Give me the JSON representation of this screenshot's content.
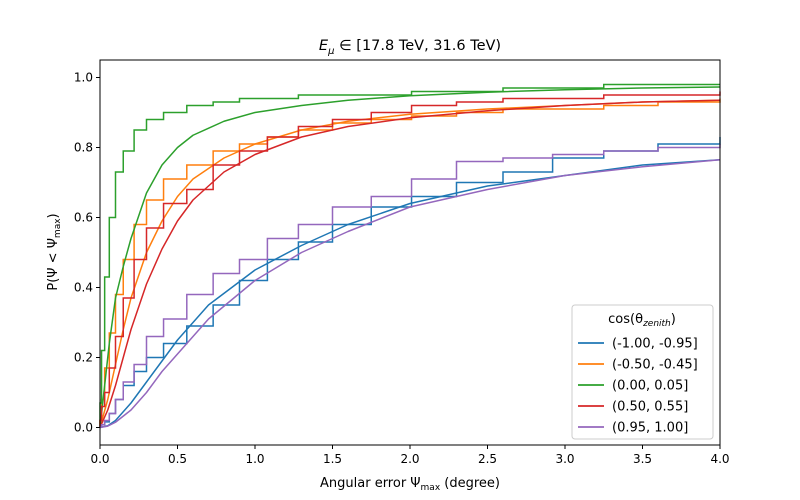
{
  "chart_data": {
    "type": "line",
    "title_prefix": "E",
    "title_sub": "μ",
    "title_suffix": " ∈ [17.8 TeV, 31.6 TeV)",
    "xlabel_prefix": "Angular error Ψ",
    "xlabel_sub": "max",
    "xlabel_suffix": " (degree)",
    "ylabel_prefix": "P(Ψ < Ψ",
    "ylabel_sub": "max",
    "ylabel_suffix": ")",
    "xlim": [
      0,
      4.0
    ],
    "ylim": [
      -0.05,
      1.05
    ],
    "xticks": [
      0.0,
      0.5,
      1.0,
      1.5,
      2.0,
      2.5,
      3.0,
      3.5,
      4.0
    ],
    "xtick_labels": [
      "0.0",
      "0.5",
      "1.0",
      "1.5",
      "2.0",
      "2.5",
      "3.0",
      "3.5",
      "4.0"
    ],
    "yticks": [
      0.0,
      0.2,
      0.4,
      0.6,
      0.8,
      1.0
    ],
    "ytick_labels": [
      "0.0",
      "0.2",
      "0.4",
      "0.6",
      "0.8",
      "1.0"
    ],
    "grid": false,
    "legend": {
      "title_prefix": "cos(θ",
      "title_sub": "zenith",
      "title_suffix": ")",
      "placement": "lower-right"
    },
    "bin_edges": [
      0,
      0.01,
      0.03,
      0.06,
      0.1,
      0.15,
      0.22,
      0.3,
      0.41,
      0.56,
      0.73,
      0.9,
      1.08,
      1.28,
      1.5,
      1.75,
      2.01,
      2.3,
      2.6,
      2.92,
      3.25,
      3.6,
      4.0
    ],
    "series": [
      {
        "name": "(-1.00, -0.95]",
        "color": "#1f77b4",
        "step_values": [
          0.003,
          0.008,
          0.016,
          0.04,
          0.08,
          0.12,
          0.16,
          0.2,
          0.24,
          0.29,
          0.35,
          0.42,
          0.48,
          0.53,
          0.58,
          0.63,
          0.66,
          0.7,
          0.73,
          0.77,
          0.79,
          0.81,
          0.83
        ],
        "curve": {
          "x": [
            0,
            0.05,
            0.1,
            0.2,
            0.3,
            0.4,
            0.5,
            0.7,
            1.0,
            1.3,
            1.6,
            2.0,
            2.5,
            3.0,
            3.5,
            4.0
          ],
          "y": [
            0.0,
            0.005,
            0.02,
            0.07,
            0.13,
            0.19,
            0.25,
            0.35,
            0.45,
            0.52,
            0.58,
            0.64,
            0.69,
            0.72,
            0.75,
            0.765
          ]
        }
      },
      {
        "name": "(-0.50, -0.45]",
        "color": "#ff7f0e",
        "step_values": [
          0.02,
          0.08,
          0.17,
          0.27,
          0.38,
          0.48,
          0.58,
          0.65,
          0.71,
          0.75,
          0.79,
          0.81,
          0.83,
          0.85,
          0.87,
          0.88,
          0.89,
          0.9,
          0.91,
          0.91,
          0.92,
          0.93,
          0.94
        ],
        "curve": {
          "x": [
            0,
            0.05,
            0.1,
            0.15,
            0.2,
            0.3,
            0.4,
            0.5,
            0.6,
            0.8,
            1.0,
            1.3,
            1.6,
            2.0,
            2.5,
            3.0,
            3.5,
            4.0
          ],
          "y": [
            0.0,
            0.08,
            0.18,
            0.28,
            0.37,
            0.5,
            0.59,
            0.66,
            0.71,
            0.77,
            0.81,
            0.85,
            0.875,
            0.895,
            0.91,
            0.92,
            0.93,
            0.935
          ]
        }
      },
      {
        "name": "(0.00, 0.05]",
        "color": "#2ca02c",
        "step_values": [
          0.07,
          0.22,
          0.43,
          0.6,
          0.73,
          0.79,
          0.85,
          0.88,
          0.9,
          0.92,
          0.93,
          0.94,
          0.94,
          0.95,
          0.95,
          0.95,
          0.96,
          0.96,
          0.97,
          0.97,
          0.98,
          0.98,
          0.98
        ],
        "curve": {
          "x": [
            0,
            0.03,
            0.06,
            0.1,
            0.15,
            0.2,
            0.3,
            0.4,
            0.5,
            0.6,
            0.8,
            1.0,
            1.3,
            1.6,
            2.0,
            2.5,
            3.0,
            3.5,
            4.0
          ],
          "y": [
            0.0,
            0.12,
            0.24,
            0.37,
            0.46,
            0.54,
            0.67,
            0.75,
            0.8,
            0.835,
            0.875,
            0.9,
            0.92,
            0.935,
            0.948,
            0.958,
            0.965,
            0.97,
            0.973
          ]
        }
      },
      {
        "name": "(0.50, 0.55]",
        "color": "#d62728",
        "step_values": [
          0.02,
          0.06,
          0.1,
          0.17,
          0.26,
          0.37,
          0.48,
          0.57,
          0.64,
          0.68,
          0.75,
          0.79,
          0.83,
          0.86,
          0.88,
          0.9,
          0.92,
          0.93,
          0.94,
          0.94,
          0.95,
          0.95,
          0.96
        ],
        "curve": {
          "x": [
            0,
            0.05,
            0.1,
            0.15,
            0.2,
            0.3,
            0.4,
            0.5,
            0.6,
            0.8,
            1.0,
            1.3,
            1.6,
            2.0,
            2.5,
            3.0,
            3.5,
            4.0
          ],
          "y": [
            0.0,
            0.05,
            0.12,
            0.2,
            0.28,
            0.41,
            0.51,
            0.59,
            0.65,
            0.73,
            0.78,
            0.83,
            0.86,
            0.885,
            0.905,
            0.92,
            0.93,
            0.935
          ]
        }
      },
      {
        "name": "(0.95, 1.00]",
        "color": "#9467bd",
        "step_values": [
          0.002,
          0.008,
          0.02,
          0.04,
          0.08,
          0.13,
          0.18,
          0.26,
          0.31,
          0.38,
          0.44,
          0.48,
          0.54,
          0.58,
          0.63,
          0.66,
          0.71,
          0.76,
          0.77,
          0.78,
          0.79,
          0.8,
          0.81
        ],
        "curve": {
          "x": [
            0,
            0.05,
            0.1,
            0.2,
            0.3,
            0.4,
            0.5,
            0.7,
            1.0,
            1.3,
            1.6,
            2.0,
            2.5,
            3.0,
            3.5,
            4.0
          ],
          "y": [
            0.0,
            0.004,
            0.015,
            0.05,
            0.1,
            0.16,
            0.21,
            0.31,
            0.42,
            0.5,
            0.56,
            0.63,
            0.68,
            0.72,
            0.745,
            0.765
          ]
        }
      }
    ]
  }
}
